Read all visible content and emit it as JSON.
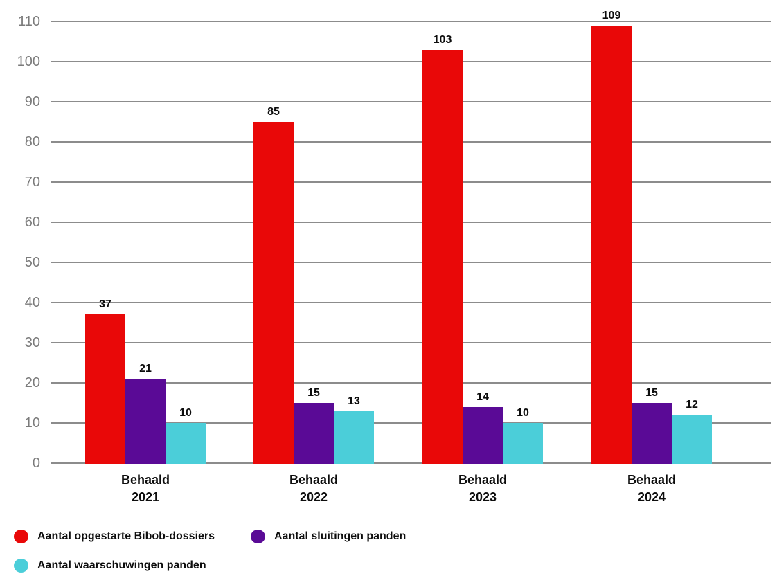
{
  "chart_data": {
    "type": "bar",
    "title": "",
    "xlabel": "",
    "ylabel": "",
    "categories": [
      {
        "line1": "Behaald",
        "line2": "2021"
      },
      {
        "line1": "Behaald",
        "line2": "2022"
      },
      {
        "line1": "Behaald",
        "line2": "2023"
      },
      {
        "line1": "Behaald",
        "line2": "2024"
      }
    ],
    "series": [
      {
        "name": "Aantal opgestarte Bibob-dossiers",
        "color": "#e90808",
        "values": [
          37,
          85,
          103,
          109
        ]
      },
      {
        "name": "Aantal sluitingen panden",
        "color": "#5a0a96",
        "values": [
          21,
          15,
          14,
          15
        ]
      },
      {
        "name": "Aantal waarschuwingen panden",
        "color": "#4bced9",
        "values": [
          10,
          13,
          10,
          12
        ]
      }
    ],
    "ylim": [
      0,
      110
    ],
    "yticks": [
      0,
      10,
      20,
      30,
      40,
      50,
      60,
      70,
      80,
      90,
      100,
      110
    ],
    "grid": "horizontal",
    "legend_position": "bottom-left"
  },
  "colors": {
    "background": "#ffffff",
    "gridline": "#8c8c8c",
    "axis_tick_label": "#7b7b7b",
    "value_label": "#0d0d0d",
    "category_label": "#0d0d0d"
  }
}
